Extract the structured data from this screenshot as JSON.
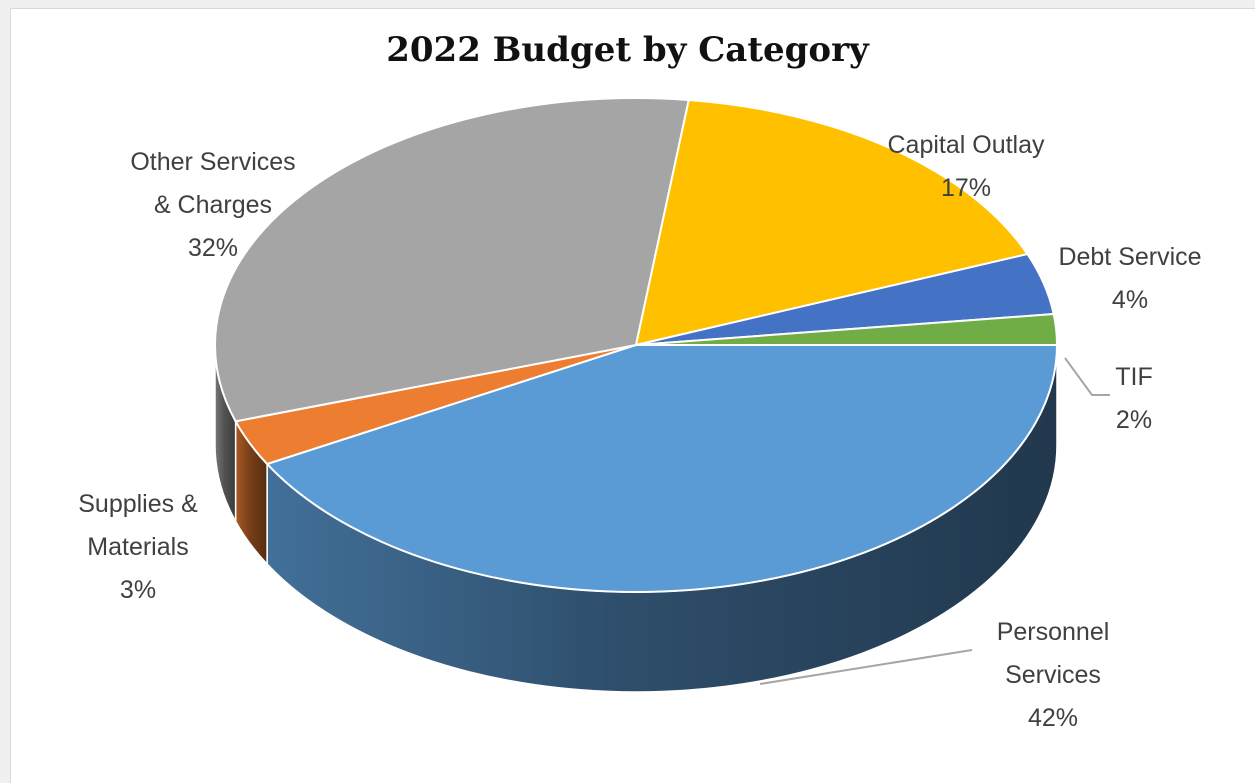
{
  "chart_data": {
    "type": "pie",
    "style": "3d",
    "title": "2022 Budget by Category",
    "legend": "none",
    "slices": [
      {
        "label_lines": [
          "Personnel",
          "Services"
        ],
        "percent_label": "42%",
        "value": 42,
        "color": "#5b9bd5"
      },
      {
        "label_lines": [
          "Supplies &",
          "Materials"
        ],
        "percent_label": "3%",
        "value": 3,
        "color": "#ed7d31"
      },
      {
        "label_lines": [
          "Other Services",
          "& Charges"
        ],
        "percent_label": "32%",
        "value": 32,
        "color": "#a5a5a5"
      },
      {
        "label_lines": [
          "Capital Outlay"
        ],
        "percent_label": "17%",
        "value": 17,
        "color": "#ffc000"
      },
      {
        "label_lines": [
          "Debt Service"
        ],
        "percent_label": "4%",
        "value": 4,
        "color": "#4472c4"
      },
      {
        "label_lines": [
          "TIF"
        ],
        "percent_label": "2%",
        "value": 2,
        "color": "#70ad47"
      }
    ]
  }
}
